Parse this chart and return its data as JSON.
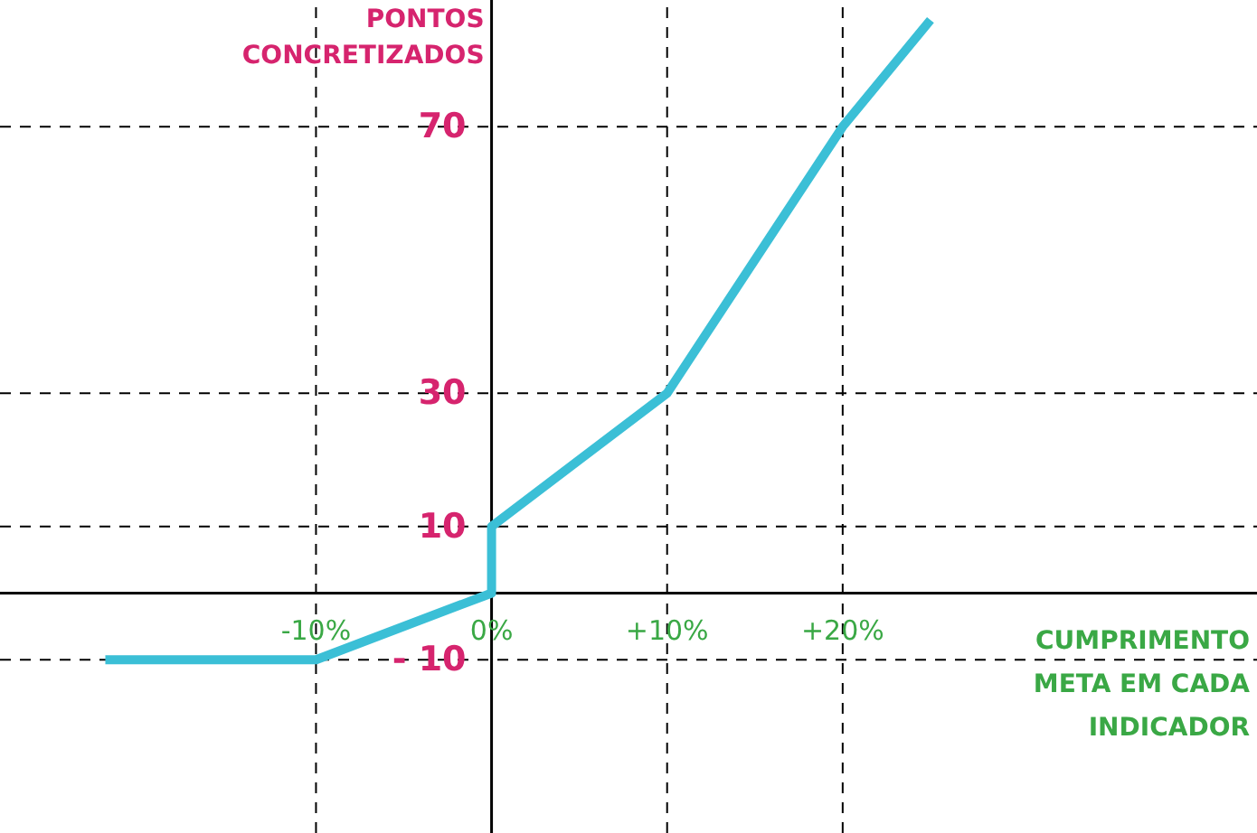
{
  "chart_data": {
    "type": "line",
    "ylabel": "PONTOS CONCRETIZADOS",
    "xlabel": "CUMPRIMENTO META EM CADA INDICADOR",
    "x": [
      -22,
      -10,
      0,
      0,
      10,
      20,
      25
    ],
    "series": [
      {
        "color": "#3bbfd6",
        "values": [
          -10,
          -10,
          0,
          10,
          30,
          70,
          86
        ]
      }
    ],
    "xlim": [
      -28,
      43.6
    ],
    "ylim": [
      -36,
      89
    ],
    "xticks": [
      {
        "value": -10,
        "label": "-10%"
      },
      {
        "value": 0,
        "label": "0%"
      },
      {
        "value": 10,
        "label": "+10%"
      },
      {
        "value": 20,
        "label": "+20%"
      }
    ],
    "yticks": [
      {
        "value": -10,
        "label": "- 10"
      },
      10,
      30,
      70
    ],
    "ref_lines": [
      {
        "axis": "x",
        "value": -10,
        "line_style": "dashed"
      },
      {
        "axis": "x",
        "value": 10,
        "line_style": "dashed"
      },
      {
        "axis": "x",
        "value": 20,
        "line_style": "dashed"
      },
      {
        "axis": "y",
        "value": -10,
        "line_style": "dashed"
      },
      {
        "axis": "y",
        "value": 10,
        "line_style": "dashed"
      },
      {
        "axis": "y",
        "value": 30,
        "line_style": "dashed"
      },
      {
        "axis": "y",
        "value": 70,
        "line_style": "dashed"
      }
    ],
    "marker": "none",
    "line_style": "solid"
  }
}
